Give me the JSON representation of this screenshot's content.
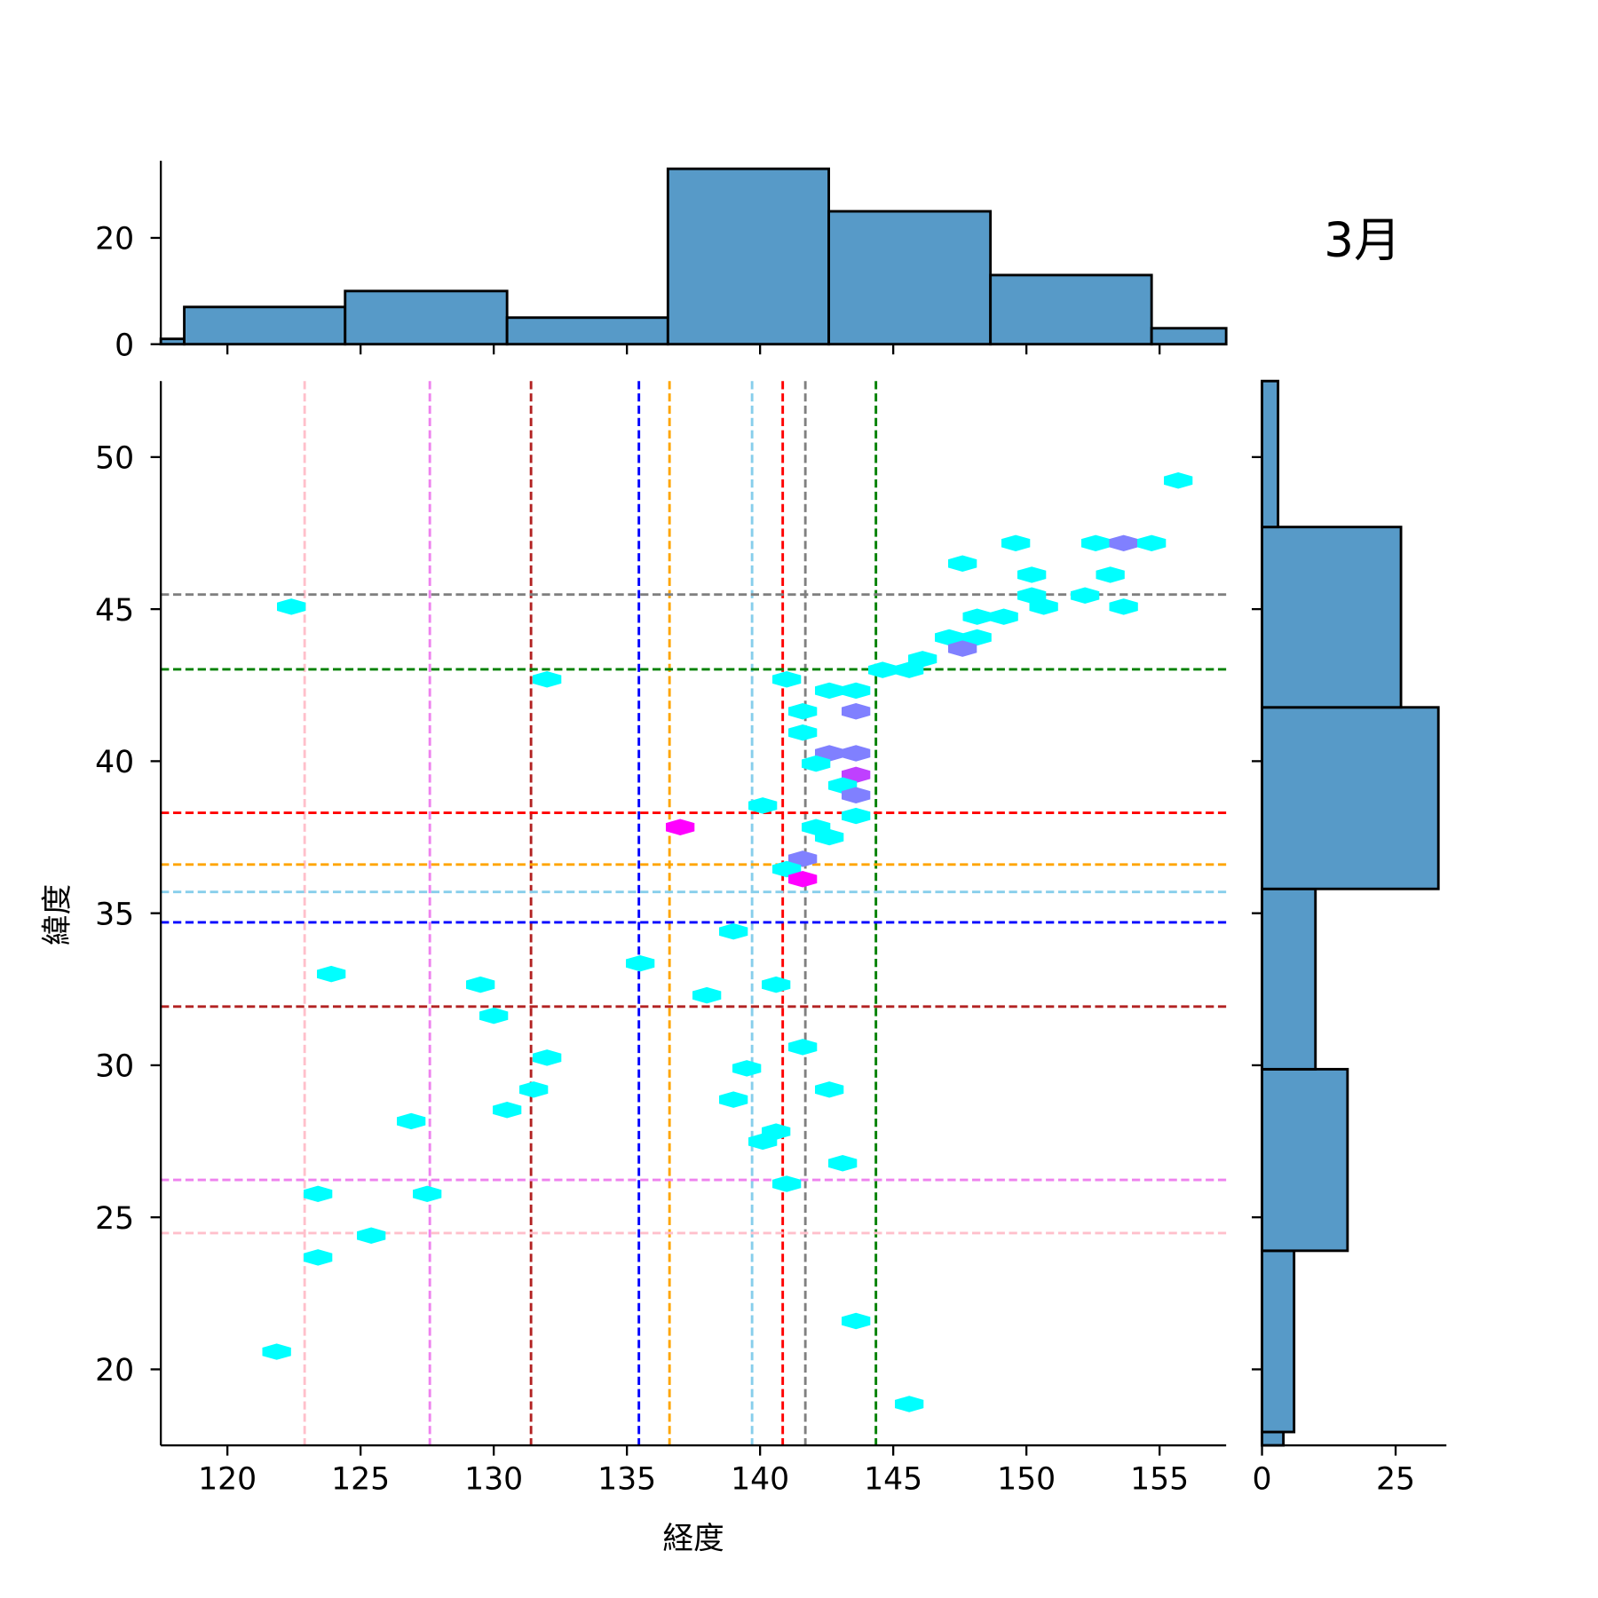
{
  "chart_data": {
    "type": "hexbin-joint",
    "title": "3月",
    "xlabel": "経度",
    "ylabel": "緯度",
    "xlim": [
      117.5,
      157.5
    ],
    "ylim": [
      17.5,
      52.5
    ],
    "xticks": [
      120,
      125,
      130,
      135,
      140,
      145,
      150,
      155
    ],
    "yticks": [
      20,
      25,
      30,
      35,
      40,
      45,
      50
    ],
    "top_hist": {
      "yticks": [
        0,
        20
      ],
      "ylim": [
        0,
        34.5
      ],
      "bins": [
        [
          117.5,
          118.38,
          1
        ],
        [
          118.38,
          124.42,
          7
        ],
        [
          124.42,
          130.5,
          10
        ],
        [
          130.5,
          136.54,
          5
        ],
        [
          136.54,
          142.58,
          33
        ],
        [
          142.58,
          148.65,
          25
        ],
        [
          148.65,
          154.7,
          13
        ],
        [
          154.7,
          157.5,
          3
        ]
      ]
    },
    "right_hist": {
      "xticks": [
        0,
        25
      ],
      "xlim": [
        0,
        34.5
      ],
      "bins": [
        [
          17.5,
          17.94,
          4
        ],
        [
          17.94,
          23.9,
          6
        ],
        [
          23.9,
          29.87,
          16
        ],
        [
          29.87,
          35.8,
          10
        ],
        [
          35.8,
          41.77,
          33
        ],
        [
          41.77,
          47.7,
          26
        ],
        [
          47.7,
          52.5,
          3
        ]
      ]
    },
    "vlines": [
      {
        "x": 122.9,
        "color": "#ffc0cb"
      },
      {
        "x": 127.6,
        "color": "#ee82ee"
      },
      {
        "x": 131.4,
        "color": "#b22222"
      },
      {
        "x": 135.45,
        "color": "#0000ff"
      },
      {
        "x": 136.6,
        "color": "#ffa500"
      },
      {
        "x": 139.7,
        "color": "#87ceeb"
      },
      {
        "x": 140.85,
        "color": "#ff0000"
      },
      {
        "x": 141.7,
        "color": "#808080"
      },
      {
        "x": 144.35,
        "color": "#008000"
      }
    ],
    "hlines": [
      {
        "y": 45.48,
        "color": "#808080"
      },
      {
        "y": 43.02,
        "color": "#008000"
      },
      {
        "y": 38.3,
        "color": "#ff0000"
      },
      {
        "y": 36.6,
        "color": "#ffa500"
      },
      {
        "y": 35.7,
        "color": "#87ceeb"
      },
      {
        "y": 34.7,
        "color": "#0000ff"
      },
      {
        "y": 31.93,
        "color": "#b22222"
      },
      {
        "y": 26.23,
        "color": "#ee82ee"
      },
      {
        "y": 24.48,
        "color": "#ffc0cb"
      }
    ],
    "count_colors": {
      "1": "#00ffff",
      "2": "#8080ff",
      "3": "#bf40ff",
      "4": "#ff00ff"
    },
    "hexbins": [
      [
        155.7,
        49.23,
        1
      ],
      [
        149.6,
        47.17,
        1
      ],
      [
        152.6,
        47.17,
        1
      ],
      [
        153.65,
        47.17,
        2
      ],
      [
        154.7,
        47.17,
        1
      ],
      [
        147.6,
        46.5,
        1
      ],
      [
        150.2,
        46.13,
        1
      ],
      [
        153.15,
        46.13,
        1
      ],
      [
        150.2,
        45.45,
        1
      ],
      [
        152.2,
        45.45,
        1
      ],
      [
        122.4,
        45.08,
        1
      ],
      [
        150.65,
        45.08,
        1
      ],
      [
        153.65,
        45.08,
        1
      ],
      [
        148.15,
        44.75,
        1
      ],
      [
        149.15,
        44.75,
        1
      ],
      [
        147.1,
        44.07,
        1
      ],
      [
        148.15,
        44.07,
        1
      ],
      [
        147.6,
        43.7,
        2
      ],
      [
        146.1,
        43.36,
        1
      ],
      [
        144.6,
        43.0,
        1
      ],
      [
        145.6,
        43.0,
        1
      ],
      [
        132.0,
        42.69,
        1
      ],
      [
        141.0,
        42.69,
        1
      ],
      [
        142.6,
        42.32,
        1
      ],
      [
        143.6,
        42.32,
        1
      ],
      [
        141.6,
        41.64,
        1
      ],
      [
        143.6,
        41.64,
        2
      ],
      [
        141.6,
        40.94,
        1
      ],
      [
        142.6,
        40.26,
        2
      ],
      [
        143.6,
        40.26,
        2
      ],
      [
        142.1,
        39.92,
        1
      ],
      [
        143.6,
        39.55,
        3
      ],
      [
        143.1,
        39.2,
        1
      ],
      [
        143.6,
        38.88,
        2
      ],
      [
        140.1,
        38.54,
        1
      ],
      [
        143.6,
        38.2,
        1
      ],
      [
        137.0,
        37.83,
        4
      ],
      [
        142.1,
        37.83,
        1
      ],
      [
        142.6,
        37.5,
        1
      ],
      [
        141.6,
        36.79,
        2
      ],
      [
        141.0,
        36.45,
        1
      ],
      [
        141.6,
        36.12,
        4
      ],
      [
        139.0,
        34.4,
        1
      ],
      [
        135.5,
        33.35,
        1
      ],
      [
        123.9,
        33.0,
        1
      ],
      [
        129.5,
        32.65,
        1
      ],
      [
        138.0,
        32.3,
        1
      ],
      [
        140.6,
        32.65,
        1
      ],
      [
        130.0,
        31.63,
        1
      ],
      [
        132.0,
        30.25,
        1
      ],
      [
        141.6,
        30.6,
        1
      ],
      [
        139.5,
        29.9,
        1
      ],
      [
        131.5,
        29.2,
        1
      ],
      [
        142.6,
        29.2,
        1
      ],
      [
        139.0,
        28.87,
        1
      ],
      [
        130.5,
        28.53,
        1
      ],
      [
        126.9,
        28.16,
        1
      ],
      [
        140.6,
        27.82,
        1
      ],
      [
        140.1,
        27.49,
        1
      ],
      [
        143.1,
        26.78,
        1
      ],
      [
        141.0,
        26.1,
        1
      ],
      [
        123.4,
        25.77,
        1
      ],
      [
        127.5,
        25.77,
        1
      ],
      [
        125.4,
        24.4,
        1
      ],
      [
        123.4,
        23.68,
        1
      ],
      [
        121.85,
        20.58,
        1
      ],
      [
        143.6,
        21.59,
        1
      ],
      [
        145.6,
        18.86,
        1
      ]
    ],
    "hist_color": "#579ac8"
  }
}
